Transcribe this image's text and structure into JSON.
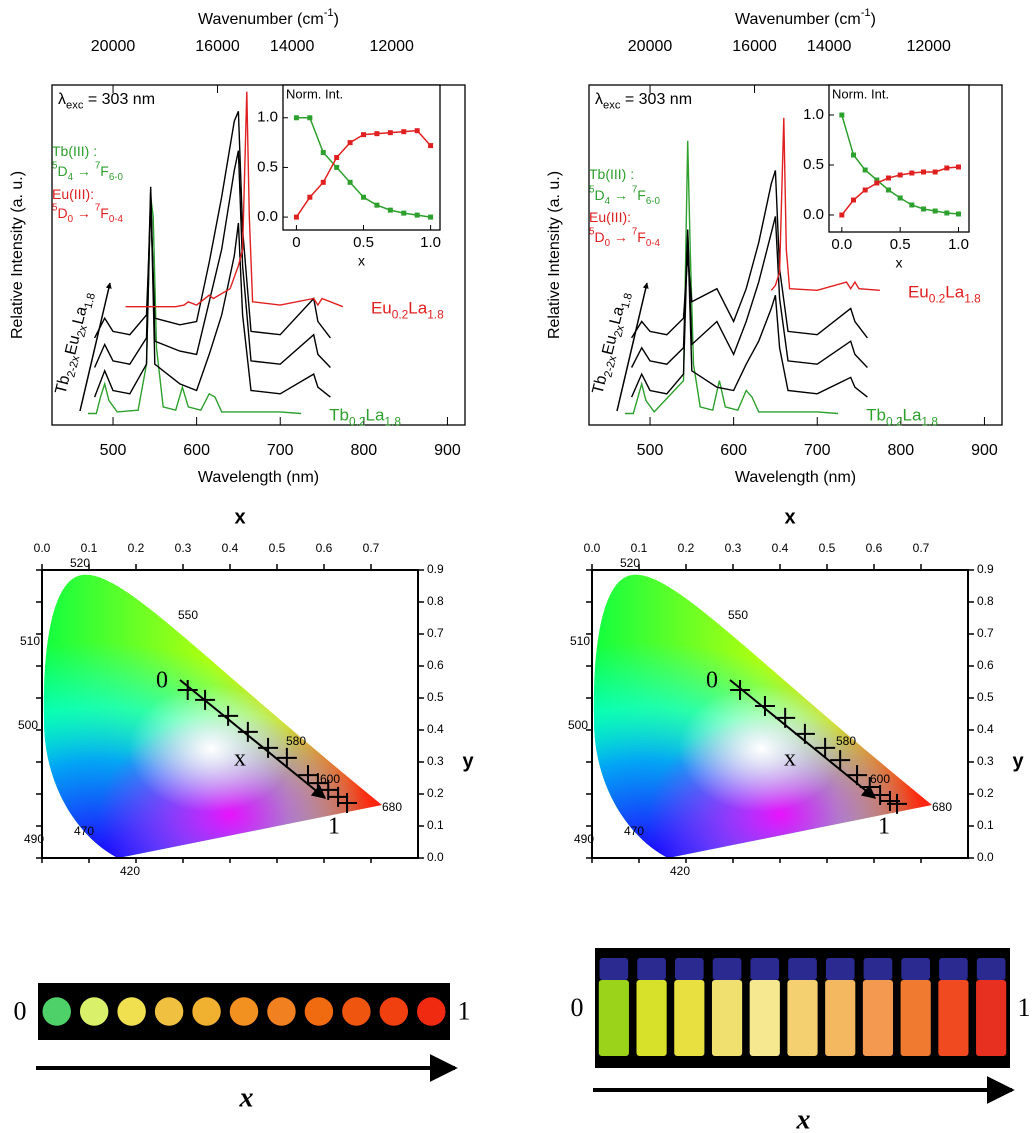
{
  "chart_data": [
    {
      "type": "spectrum",
      "xlabel": "Wavelength (nm)",
      "ylabel": "Relative Intensity (a. u.)",
      "x2label": [
        "Wavenumber (cm",
        {
          "sup": "-1"
        },
        ")"
      ],
      "xlim": [
        427,
        921
      ],
      "ylim": [
        -0.35,
        10
      ],
      "xticks": [
        500,
        600,
        700,
        800,
        900
      ],
      "x2ticks": [
        20000,
        16000,
        14000,
        12000
      ],
      "annotations": [
        {
          "text": [
            "λ",
            {
              "sub": "exc"
            },
            " = 303 nm"
          ],
          "color": "#000000"
        },
        {
          "text": [
            "Tb(III) :"
          ],
          "color": "#2e9e2e"
        },
        {
          "text": [
            {
              "sup": "5"
            },
            "D",
            {
              "sub": "4"
            },
            " → ",
            {
              "sup": "7"
            },
            "F",
            {
              "sub": "6-0"
            }
          ],
          "color": "#2e9e2e"
        },
        {
          "text": [
            "Eu(III):"
          ],
          "color": "#e02020"
        },
        {
          "text": [
            {
              "sup": "5"
            },
            "D",
            {
              "sub": "0"
            },
            " → ",
            {
              "sup": "7"
            },
            "F",
            {
              "sub": "0-4"
            }
          ],
          "color": "#e02020"
        }
      ],
      "arrow_label": [
        "Tb",
        {
          "sub": "2-2x"
        },
        "Eu",
        {
          "sub": "2x"
        },
        "La",
        {
          "sub": "1.8"
        }
      ],
      "series": [
        {
          "name": [
            "Tb",
            {
              "sub": "0.2"
            },
            "La",
            {
              "sub": "1.8"
            }
          ],
          "color": "#2ea02e",
          "x": [
            470,
            480,
            485,
            490,
            495,
            505,
            530,
            540,
            545,
            548,
            552,
            560,
            575,
            583,
            590,
            605,
            615,
            622,
            630,
            700,
            725
          ],
          "values": [
            0,
            0,
            0.5,
            0.9,
            0.4,
            0.05,
            0.1,
            1.5,
            6.6,
            6.0,
            2,
            0.2,
            0.1,
            0.8,
            0.2,
            0.1,
            0.6,
            0.5,
            0.05,
            0.05,
            0
          ]
        },
        {
          "color": "#000000",
          "x": [
            478,
            490,
            500,
            520,
            540,
            545,
            550,
            580,
            600,
            615,
            630,
            645,
            650,
            655,
            665,
            700,
            740,
            745,
            760
          ],
          "values": [
            0.5,
            1.3,
            0.7,
            0.6,
            1.5,
            6.8,
            1.5,
            0.9,
            0.7,
            1.8,
            3.0,
            4.8,
            5.8,
            3.0,
            0.7,
            0.6,
            1.2,
            0.8,
            0.5
          ]
        },
        {
          "color": "#000000",
          "x": [
            478,
            490,
            500,
            520,
            540,
            545,
            550,
            580,
            600,
            615,
            630,
            645,
            650,
            655,
            665,
            700,
            740,
            745,
            760
          ],
          "values": [
            1.4,
            2.1,
            1.6,
            1.5,
            2.3,
            6.9,
            2.2,
            1.9,
            1.8,
            3.4,
            5.0,
            7.4,
            8.0,
            4.5,
            1.6,
            1.5,
            2.4,
            1.8,
            1.4
          ]
        },
        {
          "color": "#000000",
          "x": [
            478,
            490,
            500,
            520,
            540,
            545,
            550,
            580,
            600,
            615,
            630,
            645,
            650,
            655,
            665,
            700,
            740,
            745,
            760
          ],
          "values": [
            2.3,
            2.9,
            2.5,
            2.4,
            3.0,
            6.3,
            2.9,
            2.7,
            2.8,
            4.6,
            6.6,
            8.9,
            9.2,
            5.6,
            2.5,
            2.4,
            3.5,
            2.8,
            2.3
          ]
        },
        {
          "name": [
            "Eu",
            {
              "sub": "0.2"
            },
            "La",
            {
              "sub": "1.8"
            }
          ],
          "color": "#e02020",
          "x": [
            515,
            575,
            585,
            590,
            600,
            615,
            620,
            640,
            650,
            655,
            660,
            663,
            667,
            700,
            740,
            745,
            750,
            775
          ],
          "values": [
            3.25,
            3.25,
            3.3,
            3.4,
            3.3,
            3.6,
            3.5,
            3.8,
            4.5,
            5.0,
            9.8,
            6,
            3.4,
            3.3,
            3.5,
            3.3,
            3.5,
            3.25
          ]
        }
      ],
      "inset": {
        "type": "line",
        "title": "Norm. Int.",
        "xlabel": "x",
        "xlim": [
          -0.1,
          1.07
        ],
        "ylim": [
          -0.13,
          1.33
        ],
        "xticks": [
          0,
          0.5,
          {
            "value": 1,
            "label": "1.0"
          }
        ],
        "yticks": [
          {
            "value": 0,
            "label": "0.0"
          },
          0.5,
          {
            "value": 1,
            "label": "1.0"
          }
        ],
        "x": [
          0,
          0.1,
          0.2,
          0.3,
          0.4,
          0.5,
          0.6,
          0.7,
          0.8,
          0.9,
          1.0
        ],
        "series": [
          {
            "color": "#2ea02e",
            "values": [
              1.0,
              1.0,
              0.65,
              0.5,
              0.35,
              0.2,
              0.12,
              0.07,
              0.04,
              0.02,
              0.0
            ]
          },
          {
            "color": "#e02020",
            "values": [
              0.0,
              0.2,
              0.35,
              0.6,
              0.75,
              0.83,
              0.84,
              0.85,
              0.86,
              0.87,
              0.72
            ]
          }
        ]
      }
    },
    {
      "type": "spectrum",
      "xlabel": "Wavelength (nm)",
      "ylabel": "Relative Intensity (a. u.)",
      "x2label": [
        "Wavenumber (cm",
        {
          "sup": "-1"
        },
        ")"
      ],
      "xlim": [
        427,
        921
      ],
      "ylim": [
        -0.35,
        10
      ],
      "xticks": [
        500,
        600,
        700,
        800,
        900
      ],
      "x2ticks": [
        20000,
        16000,
        14000,
        12000
      ],
      "annotations": [
        {
          "text": [
            "λ",
            {
              "sub": "exc"
            },
            " = 303 nm"
          ],
          "color": "#000000"
        },
        {
          "text": [
            "Tb(III) :"
          ],
          "color": "#2e9e2e"
        },
        {
          "text": [
            {
              "sup": "5"
            },
            "D",
            {
              "sub": "4"
            },
            " → ",
            {
              "sup": "7"
            },
            "F",
            {
              "sub": "6-0"
            }
          ],
          "color": "#2e9e2e"
        },
        {
          "text": [
            "Eu(III):"
          ],
          "color": "#e02020"
        },
        {
          "text": [
            {
              "sup": "5"
            },
            "D",
            {
              "sub": "0"
            },
            " → ",
            {
              "sup": "7"
            },
            "F",
            {
              "sub": "0-4"
            }
          ],
          "color": "#e02020"
        }
      ],
      "arrow_label": [
        "Tb",
        {
          "sub": "2-2x"
        },
        "Eu",
        {
          "sub": "2x"
        },
        "La",
        {
          "sub": "1.8"
        }
      ],
      "series": [
        {
          "name": [
            "Tb",
            {
              "sub": "0.2"
            },
            "La",
            {
              "sub": "1.8"
            }
          ],
          "color": "#2ea02e",
          "x": [
            470,
            480,
            490,
            495,
            505,
            540,
            545,
            548,
            552,
            560,
            575,
            583,
            590,
            605,
            615,
            622,
            630,
            700,
            725
          ],
          "values": [
            0,
            0,
            0.9,
            0.4,
            0.05,
            1.0,
            8.3,
            5.0,
            1.5,
            0.2,
            0.1,
            1.0,
            0.2,
            0.1,
            0.7,
            0.5,
            0.05,
            0.05,
            0
          ]
        },
        {
          "color": "#000000",
          "x": [
            478,
            490,
            500,
            520,
            540,
            545,
            550,
            580,
            600,
            615,
            630,
            645,
            650,
            655,
            665,
            700,
            740,
            745,
            760
          ],
          "values": [
            0.5,
            1.2,
            0.7,
            0.6,
            1.2,
            5.5,
            1.3,
            0.8,
            0.7,
            1.5,
            2.2,
            3.2,
            3.6,
            2.0,
            0.7,
            0.6,
            1.1,
            0.8,
            0.5
          ]
        },
        {
          "color": "#000000",
          "x": [
            478,
            490,
            500,
            520,
            540,
            545,
            550,
            580,
            600,
            615,
            630,
            645,
            650,
            655,
            665,
            700,
            740,
            745,
            760
          ],
          "values": [
            1.4,
            2.0,
            1.6,
            1.5,
            2.0,
            5.6,
            2.1,
            2.8,
            1.8,
            2.8,
            4.0,
            5.5,
            6.0,
            3.5,
            1.6,
            1.5,
            2.2,
            1.8,
            1.4
          ]
        },
        {
          "color": "#000000",
          "x": [
            478,
            490,
            500,
            520,
            540,
            545,
            550,
            580,
            600,
            615,
            630,
            645,
            650,
            655,
            665,
            700,
            740,
            745,
            760
          ],
          "values": [
            2.3,
            2.8,
            2.5,
            2.4,
            2.9,
            4.8,
            3.4,
            3.8,
            2.8,
            3.8,
            5.2,
            7.0,
            7.4,
            4.4,
            2.5,
            2.4,
            3.2,
            2.8,
            2.3
          ]
        },
        {
          "name": [
            "Eu",
            {
              "sub": "0.2"
            },
            "La",
            {
              "sub": "1.8"
            }
          ],
          "color": "#e02020",
          "x": [
            645,
            650,
            655,
            660,
            663,
            667,
            700,
            735,
            740,
            745,
            750,
            775
          ],
          "values": [
            3.75,
            3.9,
            4.3,
            9.0,
            5.0,
            3.8,
            3.75,
            4.0,
            3.8,
            4.0,
            3.8,
            3.75
          ]
        }
      ],
      "inset": {
        "type": "line",
        "title": "Norm. Int.",
        "xlabel": "x",
        "xlim": [
          -0.11,
          1.09
        ],
        "ylim": [
          -0.17,
          1.3
        ],
        "xticks": [
          {
            "value": 0,
            "label": "0.0"
          },
          0.5,
          {
            "value": 1,
            "label": "1.0"
          }
        ],
        "yticks": [
          {
            "value": 0,
            "label": "0.0"
          },
          0.5,
          {
            "value": 1,
            "label": "1.0"
          }
        ],
        "x": [
          0,
          0.1,
          0.2,
          0.3,
          0.4,
          0.5,
          0.6,
          0.7,
          0.8,
          0.9,
          1.0
        ],
        "series": [
          {
            "color": "#2ea02e",
            "values": [
              1.0,
              0.6,
              0.45,
              0.35,
              0.25,
              0.17,
              0.1,
              0.06,
              0.04,
              0.02,
              0.01
            ]
          },
          {
            "color": "#e02020",
            "values": [
              0.0,
              0.15,
              0.25,
              0.32,
              0.37,
              0.4,
              0.42,
              0.43,
              0.43,
              0.47,
              0.48
            ]
          }
        ]
      }
    },
    {
      "type": "scatter",
      "xlabel": "x",
      "ylabel": "y",
      "xlim": [
        0,
        0.8
      ],
      "ylim": [
        0,
        0.9
      ],
      "xticks": [
        {
          "value": 0,
          "label": "0.0"
        },
        0.1,
        0.2,
        0.3,
        0.4,
        0.5,
        0.6,
        0.7
      ],
      "yticks": [
        {
          "value": 0,
          "label": "0.0"
        },
        0.1,
        0.2,
        0.3,
        0.4,
        0.5,
        0.6,
        0.7,
        0.8,
        0.9
      ],
      "x": [
        0.31,
        0.347,
        0.396,
        0.438,
        0.481,
        0.521,
        0.566,
        0.587,
        0.609,
        0.63,
        0.649
      ],
      "values": [
        0.525,
        0.494,
        0.444,
        0.394,
        0.344,
        0.313,
        0.259,
        0.234,
        0.213,
        0.191,
        0.172
      ],
      "color": "#000000",
      "wavelength_labels": [
        "520",
        "550",
        "510",
        "500",
        "580",
        "600",
        "680",
        "490",
        "470",
        "420"
      ],
      "annotations": [
        "0",
        "x",
        "1"
      ]
    },
    {
      "type": "scatter",
      "xlabel": "x",
      "ylabel": "y",
      "xlim": [
        0,
        0.8
      ],
      "ylim": [
        0,
        0.9
      ],
      "xticks": [
        {
          "value": 0,
          "label": "0.0"
        },
        0.1,
        0.2,
        0.3,
        0.4,
        0.5,
        0.6,
        0.7
      ],
      "yticks": [
        {
          "value": 0,
          "label": "0.0"
        },
        0.1,
        0.2,
        0.3,
        0.4,
        0.5,
        0.6,
        0.7,
        0.8,
        0.9
      ],
      "x": [
        0.315,
        0.368,
        0.411,
        0.453,
        0.496,
        0.528,
        0.564,
        0.591,
        0.613,
        0.634,
        0.649
      ],
      "values": [
        0.525,
        0.475,
        0.438,
        0.388,
        0.344,
        0.306,
        0.259,
        0.222,
        0.197,
        0.178,
        0.169
      ],
      "color": "#000000",
      "wavelength_labels": [
        "520",
        "550",
        "510",
        "500",
        "580",
        "600",
        "680",
        "490",
        "470",
        "420"
      ],
      "annotations": [
        "0",
        "x",
        "1"
      ]
    },
    {
      "type": "swatches",
      "start_label": "0",
      "end_label": "1",
      "xlabel": "x",
      "colors": [
        "#4fd16a",
        "#d9f06a",
        "#f0e050",
        "#f0c040",
        "#f0b030",
        "#f29020",
        "#f08020",
        "#f06a10",
        "#f05510",
        "#f04010",
        "#f02a10"
      ]
    },
    {
      "type": "vials",
      "start_label": "0",
      "end_label": "1",
      "xlabel": "x",
      "colors": [
        "#9bd21a",
        "#d7e12a",
        "#e8e040",
        "#f0e070",
        "#f5e890",
        "#f5d070",
        "#f4b860",
        "#f49a50",
        "#f07a30",
        "#f04a20",
        "#e83020"
      ]
    }
  ]
}
